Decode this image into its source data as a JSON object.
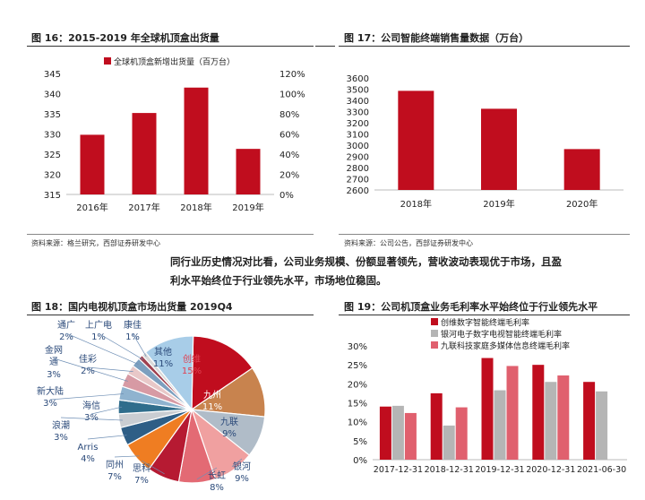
{
  "figures": {
    "fig16": {
      "title": "图 16：2015-2019 年全球机顶盒出货量",
      "source": "资料来源：格兰研究，西部证券研发中心"
    },
    "fig17": {
      "title": "图 17：公司智能终端销售量数据（万台）",
      "source": "资料来源：公司公告，西部证券研发中心"
    },
    "fig18": {
      "title": "图 18：国内电视机顶盒市场出货量 2019Q4"
    },
    "fig19": {
      "title": "图 19：公司机顶盒业务毛利率水平始终位于行业领先水平"
    }
  },
  "paragraph": {
    "line1": "同行业历史情况对比看，公司业务规模、份额显著领先，营收波动表现优于市场，且盈",
    "line2": "利水平始终位于行业领先水平，市场地位稳固。"
  },
  "colors": {
    "red": "#c00d1e",
    "gray": "#b5b5b5",
    "pink": "#e0606e"
  },
  "chart_data": [
    {
      "id": "fig16",
      "type": "bar",
      "legend_label": "全球机顶盒新增出货量（百万台）",
      "categories": [
        "2016年",
        "2017年",
        "2018年",
        "2019年"
      ],
      "values": [
        329.8,
        335.2,
        341.5,
        326.3
      ],
      "ylim": [
        315,
        345
      ],
      "yticks": [
        "315",
        "320",
        "325",
        "330",
        "335",
        "340",
        "345"
      ],
      "y2ticks": [
        "0%",
        "20%",
        "40%",
        "60%",
        "80%",
        "100%",
        "120%"
      ],
      "legend_position": "top"
    },
    {
      "id": "fig17",
      "type": "bar",
      "categories": [
        "2018年",
        "2019年",
        "2020年"
      ],
      "values": [
        3485,
        3325,
        2965
      ],
      "ylim": [
        2600,
        3600
      ],
      "yticks": [
        "2600",
        "2700",
        "2800",
        "2900",
        "3000",
        "3100",
        "3200",
        "3300",
        "3400",
        "3500",
        "3600"
      ]
    },
    {
      "id": "fig18",
      "type": "pie",
      "slices": [
        {
          "name": "创维",
          "label": "15%",
          "value": 15,
          "color": "#c00d1e"
        },
        {
          "name": "九州",
          "label": "11%",
          "value": 11,
          "color": "#c8834e"
        },
        {
          "name": "九联",
          "label": "9%",
          "value": 9,
          "color": "#b0bcc8"
        },
        {
          "name": "银河",
          "label": "9%",
          "value": 9,
          "color": "#f0a0a0"
        },
        {
          "name": "长虹",
          "label": "8%",
          "value": 8,
          "color": "#e36a74"
        },
        {
          "name": "思科",
          "label": "7%",
          "value": 7,
          "color": "#b61a32"
        },
        {
          "name": "同州",
          "label": "7%",
          "value": 7,
          "color": "#ef7d22"
        },
        {
          "name": "Arris",
          "label": "4%",
          "value": 4,
          "color": "#2e5e86"
        },
        {
          "name": "浪潮",
          "label": "3%",
          "value": 3,
          "color": "#c9cdd2"
        },
        {
          "name": "海信",
          "label": "3%",
          "value": 3,
          "color": "#2f6d8c"
        },
        {
          "name": "新大陆",
          "label": "3%",
          "value": 3,
          "color": "#8fb3cf"
        },
        {
          "name": "金网通",
          "label": "3%",
          "value": 3,
          "color": "#d79aa4"
        },
        {
          "name": "佳彩",
          "label": "2%",
          "value": 2,
          "color": "#e8c8c8"
        },
        {
          "name": "通广",
          "label": "2%",
          "value": 2,
          "color": "#7c9fbf"
        },
        {
          "name": "上广电",
          "label": "1%",
          "value": 1,
          "color": "#a04150"
        },
        {
          "name": "康佳",
          "label": "1%",
          "value": 1,
          "color": "#d9d9d9"
        },
        {
          "name": "其他",
          "label": "11%",
          "value": 11,
          "color": "#a8cde8"
        }
      ]
    },
    {
      "id": "fig19",
      "type": "bar",
      "categories": [
        "2017-12-31",
        "2018-12-31",
        "2019-12-31",
        "2020-12-31",
        "2021-06-30"
      ],
      "series": [
        {
          "name": "创维数字智能终端毛利率",
          "values": [
            14.0,
            17.5,
            26.8,
            25.0,
            20.5
          ],
          "color": "#c00d1e"
        },
        {
          "name": "银河电子数字电视智能终端毛利率",
          "values": [
            14.2,
            9.0,
            18.3,
            20.5,
            18.0
          ],
          "color": "#b5b5b5"
        },
        {
          "name": "九联科技家庭多媒体信息终端毛利率",
          "values": [
            12.3,
            13.8,
            24.7,
            22.2,
            null
          ],
          "color": "#e0606e"
        }
      ],
      "ylim": [
        0,
        30
      ],
      "yticks": [
        "0%",
        "5%",
        "10%",
        "15%",
        "20%",
        "25%",
        "30%"
      ],
      "legend_position": "top-left"
    }
  ]
}
